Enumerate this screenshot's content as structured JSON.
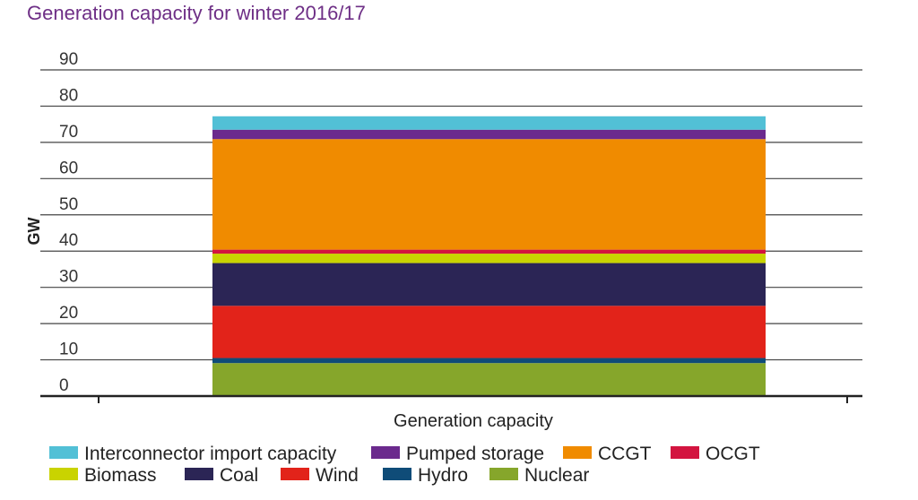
{
  "chart_data": {
    "type": "bar",
    "stacked": true,
    "title": "Generation capacity for winter 2016/17",
    "xlabel": "Generation capacity",
    "ylabel": "GW",
    "ylim": [
      0,
      90
    ],
    "yticks": [
      0,
      10,
      20,
      30,
      40,
      50,
      60,
      70,
      80,
      90
    ],
    "grid": true,
    "legend_position": "bottom",
    "categories": [
      "Generation capacity"
    ],
    "series": [
      {
        "name": "Nuclear",
        "values": [
          9.1
        ],
        "color": "#86a62b"
      },
      {
        "name": "Hydro",
        "values": [
          1.4
        ],
        "color": "#0f4c78"
      },
      {
        "name": "Wind",
        "values": [
          14.4
        ],
        "color": "#e2231a"
      },
      {
        "name": "Coal",
        "values": [
          11.8
        ],
        "color": "#2b2555"
      },
      {
        "name": "Biomass",
        "values": [
          2.6
        ],
        "color": "#c9d300"
      },
      {
        "name": "OCGT",
        "values": [
          1.1
        ],
        "color": "#d3143f"
      },
      {
        "name": "CCGT",
        "values": [
          30.5
        ],
        "color": "#f08b00"
      },
      {
        "name": "Pumped storage",
        "values": [
          2.6
        ],
        "color": "#6b2a8d"
      },
      {
        "name": "Interconnector import capacity",
        "values": [
          3.7
        ],
        "color": "#52c0d6"
      }
    ],
    "legend_order": [
      "Interconnector import capacity",
      "Pumped storage",
      "CCGT",
      "OCGT",
      "Biomass",
      "Coal",
      "Wind",
      "Hydro",
      "Nuclear"
    ]
  }
}
